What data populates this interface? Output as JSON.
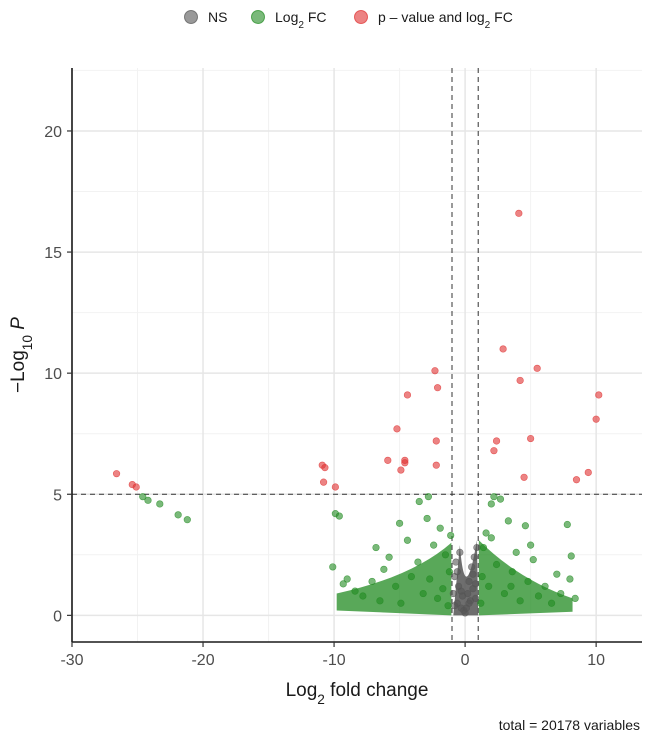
{
  "chart_data": {
    "type": "scatter",
    "subtype": "volcano",
    "xlabel": "Log2 fold change",
    "ylabel": "-Log10 P",
    "xlim": [
      -30,
      13.5
    ],
    "ylim": [
      -1.1,
      22.6
    ],
    "x_ticks": [
      -30,
      -20,
      -10,
      0,
      10
    ],
    "y_ticks": [
      0,
      5,
      10,
      15,
      20
    ],
    "grid": true,
    "legend_position": "top",
    "thresholds": {
      "fold_change": [
        -1,
        1
      ],
      "p_value_log10": 5
    },
    "caption": "total = 20178 variables",
    "colors": {
      "NS": "#555555",
      "Log2 FC": "#228b22",
      "p-value and log2 FC": "#e03030"
    },
    "series": [
      {
        "name": "NS",
        "legend_label": "NS",
        "points": [
          [
            -0.9,
            0.9
          ],
          [
            -0.8,
            1.6
          ],
          [
            -0.7,
            2.2
          ],
          [
            -0.6,
            0.5
          ],
          [
            -0.5,
            1.2
          ],
          [
            -0.4,
            2.6
          ],
          [
            -0.3,
            0.3
          ],
          [
            -0.2,
            0.8
          ],
          [
            -0.1,
            0.2
          ],
          [
            0.0,
            0.1
          ],
          [
            0.1,
            0.3
          ],
          [
            0.2,
            0.9
          ],
          [
            0.3,
            1.4
          ],
          [
            0.4,
            0.6
          ],
          [
            0.5,
            2.0
          ],
          [
            0.6,
            1.1
          ],
          [
            0.7,
            2.4
          ],
          [
            0.8,
            0.7
          ],
          [
            0.9,
            2.8
          ],
          [
            -0.6,
            1.8
          ],
          [
            0.6,
            1.7
          ],
          [
            -0.3,
            1.0
          ],
          [
            0.3,
            0.5
          ],
          [
            -0.8,
            0.4
          ],
          [
            0.8,
            1.3
          ]
        ]
      },
      {
        "name": "Log2 FC",
        "legend_label": "Log2 FC",
        "points": [
          [
            -24.6,
            4.9
          ],
          [
            -24.2,
            4.75
          ],
          [
            -23.3,
            4.6
          ],
          [
            -21.9,
            4.15
          ],
          [
            -21.2,
            3.95
          ],
          [
            -9.9,
            4.2
          ],
          [
            -9.6,
            4.1
          ],
          [
            -10.1,
            2.0
          ],
          [
            -9.3,
            1.3
          ],
          [
            -9.0,
            1.5
          ],
          [
            -8.4,
            1.0
          ],
          [
            -7.8,
            0.8
          ],
          [
            -7.1,
            1.4
          ],
          [
            -6.5,
            0.6
          ],
          [
            -6.2,
            1.9
          ],
          [
            -5.8,
            2.4
          ],
          [
            -5.3,
            1.2
          ],
          [
            -4.9,
            0.5
          ],
          [
            -4.4,
            3.1
          ],
          [
            -4.1,
            1.6
          ],
          [
            -3.6,
            2.2
          ],
          [
            -3.2,
            0.9
          ],
          [
            -2.9,
            4.0
          ],
          [
            -2.7,
            1.5
          ],
          [
            -2.4,
            2.9
          ],
          [
            -2.1,
            0.7
          ],
          [
            -1.9,
            3.6
          ],
          [
            -1.7,
            1.1
          ],
          [
            -1.5,
            2.5
          ],
          [
            -1.3,
            0.4
          ],
          [
            -1.2,
            1.8
          ],
          [
            -1.1,
            3.3
          ],
          [
            -2.8,
            4.9
          ],
          [
            -3.5,
            4.7
          ],
          [
            -5.0,
            3.8
          ],
          [
            -6.8,
            2.8
          ],
          [
            1.2,
            0.5
          ],
          [
            1.3,
            1.6
          ],
          [
            1.4,
            2.8
          ],
          [
            1.6,
            3.4
          ],
          [
            1.8,
            1.2
          ],
          [
            2.0,
            4.6
          ],
          [
            2.2,
            4.9
          ],
          [
            2.4,
            2.1
          ],
          [
            2.7,
            4.8
          ],
          [
            3.0,
            0.9
          ],
          [
            3.3,
            3.9
          ],
          [
            3.6,
            1.8
          ],
          [
            3.9,
            2.6
          ],
          [
            4.2,
            0.6
          ],
          [
            4.6,
            3.7
          ],
          [
            4.8,
            1.4
          ],
          [
            5.2,
            2.3
          ],
          [
            5.6,
            0.8
          ],
          [
            6.1,
            1.2
          ],
          [
            6.6,
            0.5
          ],
          [
            7.0,
            1.7
          ],
          [
            7.3,
            0.9
          ],
          [
            7.8,
            3.75
          ],
          [
            8.1,
            2.45
          ],
          [
            8.0,
            1.5
          ],
          [
            8.4,
            0.7
          ],
          [
            2.0,
            3.2
          ],
          [
            3.5,
            1.2
          ],
          [
            5.0,
            2.9
          ]
        ]
      },
      {
        "name": "p-value and log2 FC",
        "legend_label": "p – value and log2 FC",
        "points": [
          [
            -26.6,
            5.85
          ],
          [
            -25.4,
            5.4
          ],
          [
            -25.1,
            5.3
          ],
          [
            -10.9,
            6.2
          ],
          [
            -10.7,
            6.1
          ],
          [
            -10.8,
            5.5
          ],
          [
            -9.9,
            5.3
          ],
          [
            -5.9,
            6.4
          ],
          [
            -5.2,
            7.7
          ],
          [
            -4.9,
            6.0
          ],
          [
            -4.6,
            6.3
          ],
          [
            -4.6,
            6.4
          ],
          [
            -4.4,
            9.1
          ],
          [
            -2.3,
            10.1
          ],
          [
            -2.1,
            9.4
          ],
          [
            -2.2,
            7.2
          ],
          [
            -2.2,
            6.2
          ],
          [
            2.2,
            6.8
          ],
          [
            2.4,
            7.2
          ],
          [
            2.9,
            11.0
          ],
          [
            4.1,
            16.6
          ],
          [
            4.2,
            9.7
          ],
          [
            4.5,
            5.7
          ],
          [
            5.0,
            7.3
          ],
          [
            5.5,
            10.2
          ],
          [
            8.5,
            5.6
          ],
          [
            9.4,
            5.9
          ],
          [
            10.0,
            8.1
          ],
          [
            10.2,
            9.1
          ]
        ]
      }
    ]
  }
}
